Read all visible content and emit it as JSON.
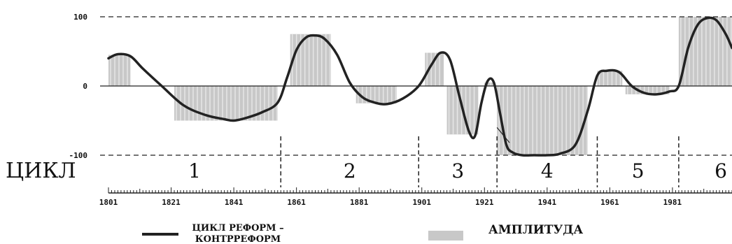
{
  "chart_data": {
    "type": "line",
    "y_ticks": [
      "100",
      "0",
      "-100"
    ],
    "ylim": [
      -100,
      100
    ],
    "xlim": [
      1801,
      2000
    ],
    "x_tick_labels": [
      "1801",
      "1821",
      "1841",
      "1861",
      "1881",
      "1901",
      "1921",
      "1941",
      "1961",
      "1981"
    ],
    "x_tick_values": [
      1801,
      1821,
      1841,
      1861,
      1881,
      1901,
      1921,
      1941,
      1961,
      1981
    ],
    "cycle_word": "ЦИКЛ",
    "cycles": [
      "1",
      "2",
      "3",
      "4",
      "5",
      "6"
    ],
    "cycle_boundaries": [
      1856,
      1900,
      1925,
      1957,
      1983
    ],
    "series": [
      {
        "name": "ЦИКЛ РЕФОРМ – КОНТРРЕФОРМ",
        "color": "#222222",
        "x": [
          1801,
          1804,
          1808,
          1812,
          1818,
          1825,
          1832,
          1838,
          1841,
          1845,
          1850,
          1855,
          1858,
          1861,
          1864,
          1867,
          1870,
          1874,
          1878,
          1882,
          1886,
          1890,
          1895,
          1900,
          1904,
          1907,
          1910,
          1913,
          1916,
          1918,
          1920,
          1922,
          1924,
          1926,
          1928,
          1930,
          1933,
          1937,
          1941,
          1945,
          1950,
          1954,
          1957,
          1960,
          1964,
          1968,
          1972,
          1976,
          1980,
          1983,
          1986,
          1989,
          1992,
          1995,
          1998,
          2000
        ],
        "values": [
          40,
          46,
          43,
          25,
          0,
          -28,
          -42,
          -48,
          -50,
          -46,
          -38,
          -24,
          12,
          52,
          70,
          73,
          68,
          45,
          5,
          -16,
          -24,
          -26,
          -18,
          0,
          30,
          48,
          38,
          -15,
          -65,
          -72,
          -25,
          7,
          5,
          -40,
          -85,
          -96,
          -100,
          -100,
          -100,
          -98,
          -85,
          -35,
          15,
          22,
          20,
          0,
          -10,
          -12,
          -8,
          0,
          55,
          88,
          98,
          95,
          75,
          55
        ]
      }
    ],
    "bars": {
      "name": "АМПЛИТУДА",
      "color": "#c8c8c8",
      "segments": [
        {
          "from": 1801,
          "to": 1808,
          "value": 45
        },
        {
          "from": 1822,
          "to": 1855,
          "value": -50
        },
        {
          "from": 1859,
          "to": 1872,
          "value": 75
        },
        {
          "from": 1880,
          "to": 1893,
          "value": -25
        },
        {
          "from": 1902,
          "to": 1908,
          "value": 48
        },
        {
          "from": 1909,
          "to": 1919,
          "value": -70
        },
        {
          "from": 1921,
          "to": 1924,
          "value": 5
        },
        {
          "from": 1925,
          "to": 1954,
          "value": -100
        },
        {
          "from": 1957,
          "to": 1965,
          "value": 22
        },
        {
          "from": 1966,
          "to": 1980,
          "value": -12
        },
        {
          "from": 1983,
          "to": 2000,
          "value": 100
        }
      ]
    },
    "legend": {
      "line_label_1": "ЦИКЛ РЕФОРМ –",
      "line_label_2": "КОНТРРЕФОРМ",
      "bar_label": "АМПЛИТУДА"
    }
  }
}
